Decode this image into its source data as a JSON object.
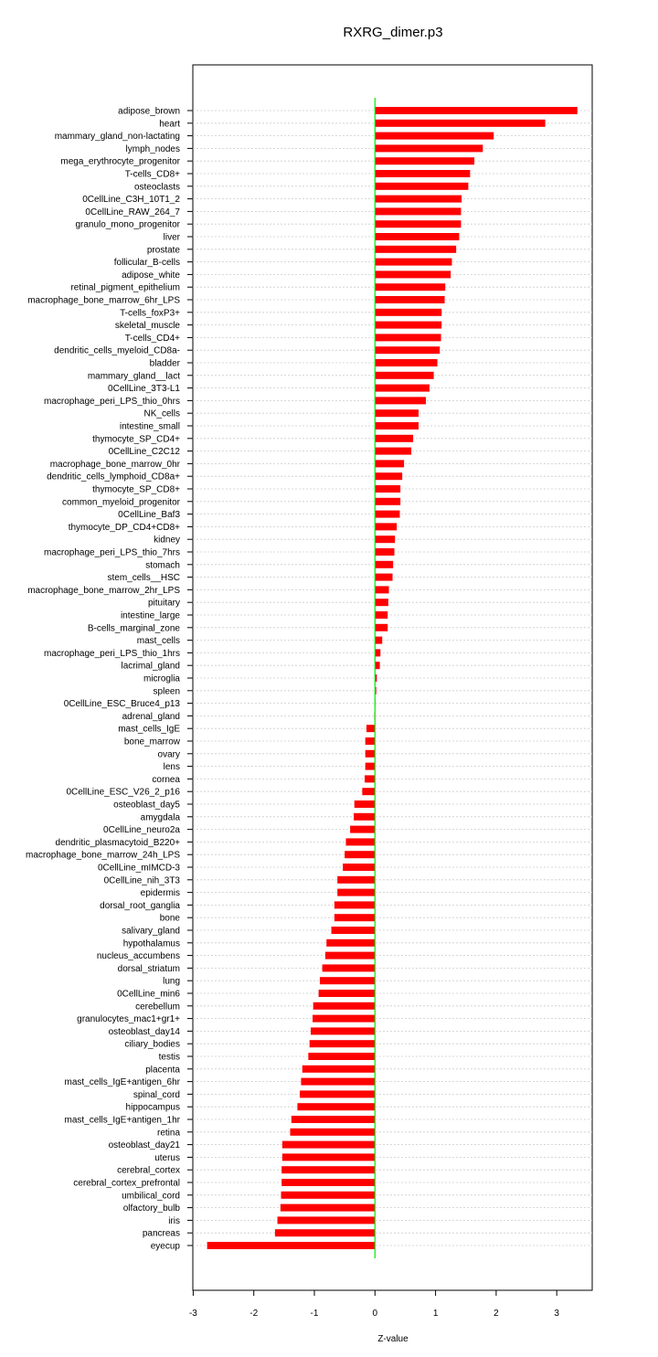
{
  "chart_data": {
    "type": "bar",
    "orientation": "horizontal",
    "title": "RXRG_dimer.p3",
    "xlabel": "Z-value",
    "ylabel": "",
    "xlim": [
      -3,
      3.55
    ],
    "xticks": [
      -3,
      -2,
      -1,
      0,
      1,
      2,
      3
    ],
    "grid": true,
    "colors": {
      "bar": "#ff0000",
      "zero_line": "#00ee00",
      "grid": "#cccccc"
    },
    "categories": [
      "adipose_brown",
      "heart",
      "mammary_gland_non-lactating",
      "lymph_nodes",
      "mega_erythrocyte_progenitor",
      "T-cells_CD8+",
      "osteoclasts",
      "0CellLine_C3H_10T1_2",
      "0CellLine_RAW_264_7",
      "granulo_mono_progenitor",
      "liver",
      "prostate",
      "follicular_B-cells",
      "adipose_white",
      "retinal_pigment_epithelium",
      "macrophage_bone_marrow_6hr_LPS",
      "T-cells_foxP3+",
      "skeletal_muscle",
      "T-cells_CD4+",
      "dendritic_cells_myeloid_CD8a-",
      "bladder",
      "mammary_gland__lact",
      "0CellLine_3T3-L1",
      "macrophage_peri_LPS_thio_0hrs",
      "NK_cells",
      "intestine_small",
      "thymocyte_SP_CD4+",
      "0CellLine_C2C12",
      "macrophage_bone_marrow_0hr",
      "dendritic_cells_lymphoid_CD8a+",
      "thymocyte_SP_CD8+",
      "common_myeloid_progenitor",
      "0CellLine_Baf3",
      "thymocyte_DP_CD4+CD8+",
      "kidney",
      "macrophage_peri_LPS_thio_7hrs",
      "stomach",
      "stem_cells__HSC",
      "macrophage_bone_marrow_2hr_LPS",
      "pituitary",
      "intestine_large",
      "B-cells_marginal_zone",
      "mast_cells",
      "macrophage_peri_LPS_thio_1hrs",
      "lacrimal_gland",
      "microglia",
      "spleen",
      "0CellLine_ESC_Bruce4_p13",
      "adrenal_gland",
      "mast_cells_IgE",
      "bone_marrow",
      "ovary",
      "lens",
      "cornea",
      "0CellLine_ESC_V26_2_p16",
      "osteoblast_day5",
      "amygdala",
      "0CellLine_neuro2a",
      "dendritic_plasmacytoid_B220+",
      "macrophage_bone_marrow_24h_LPS",
      "0CellLine_mIMCD-3",
      "0CellLine_nih_3T3",
      "epidermis",
      "dorsal_root_ganglia",
      "bone",
      "salivary_gland",
      "hypothalamus",
      "nucleus_accumbens",
      "dorsal_striatum",
      "lung",
      "0CellLine_min6",
      "cerebellum",
      "granulocytes_mac1+gr1+",
      "osteoblast_day14",
      "ciliary_bodies",
      "testis",
      "placenta",
      "mast_cells_IgE+antigen_6hr",
      "spinal_cord",
      "hippocampus",
      "mast_cells_IgE+antigen_1hr",
      "retina",
      "osteoblast_day21",
      "uterus",
      "cerebral_cortex",
      "cerebral_cortex_prefrontal",
      "umbilical_cord",
      "olfactory_bulb",
      "iris",
      "pancreas",
      "eyecup"
    ],
    "values": [
      3.34,
      2.81,
      1.96,
      1.78,
      1.64,
      1.57,
      1.54,
      1.43,
      1.42,
      1.42,
      1.39,
      1.34,
      1.27,
      1.25,
      1.16,
      1.15,
      1.1,
      1.1,
      1.09,
      1.07,
      1.03,
      0.97,
      0.9,
      0.84,
      0.72,
      0.72,
      0.63,
      0.6,
      0.48,
      0.45,
      0.42,
      0.42,
      0.41,
      0.36,
      0.33,
      0.32,
      0.3,
      0.29,
      0.23,
      0.22,
      0.21,
      0.21,
      0.12,
      0.09,
      0.08,
      0.03,
      0.02,
      0.005,
      -0.01,
      -0.14,
      -0.16,
      -0.16,
      -0.16,
      -0.17,
      -0.21,
      -0.34,
      -0.35,
      -0.41,
      -0.48,
      -0.5,
      -0.53,
      -0.62,
      -0.62,
      -0.67,
      -0.67,
      -0.72,
      -0.8,
      -0.82,
      -0.87,
      -0.91,
      -0.93,
      -1.02,
      -1.03,
      -1.06,
      -1.08,
      -1.1,
      -1.2,
      -1.22,
      -1.24,
      -1.28,
      -1.38,
      -1.4,
      -1.53,
      -1.53,
      -1.54,
      -1.54,
      -1.55,
      -1.56,
      -1.61,
      -1.65,
      -2.77
    ]
  }
}
